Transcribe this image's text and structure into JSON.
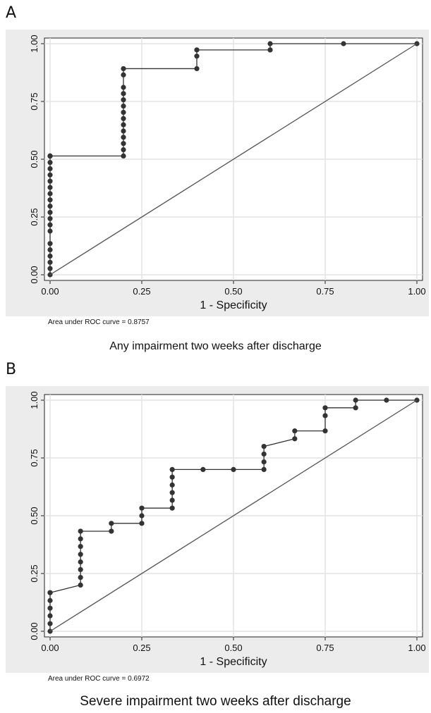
{
  "chart_data": [
    {
      "type": "line",
      "panel_label": "A",
      "caption": "Any impairment two weeks after discharge",
      "xlabel": "1 - Specificity",
      "ylabel": "",
      "xlim": [
        0,
        1
      ],
      "ylim": [
        0,
        1
      ],
      "xticks": [
        "0.00",
        "0.25",
        "0.50",
        "0.75",
        "1.00"
      ],
      "yticks": [
        "0.00",
        "0.25",
        "0.50",
        "0.75",
        "1.00"
      ],
      "grid": true,
      "annotation": "Area under ROC curve = 0.8757",
      "series": [
        {
          "role": "roc",
          "x": [
            0,
            0,
            0,
            0,
            0,
            0,
            0,
            0,
            0,
            0,
            0,
            0,
            0,
            0,
            0,
            0,
            0,
            0,
            0,
            0,
            0,
            0.2,
            0.2,
            0.2,
            0.2,
            0.2,
            0.2,
            0.2,
            0.2,
            0.2,
            0.2,
            0.2,
            0.2,
            0.2,
            0.2,
            0.4,
            0.4,
            0.4,
            0.6,
            0.6,
            0.8,
            1.0
          ],
          "y": [
            0,
            0.027,
            0.054,
            0.081,
            0.108,
            0.135,
            0.189,
            0.216,
            0.243,
            0.27,
            0.297,
            0.324,
            0.351,
            0.378,
            0.405,
            0.432,
            0.459,
            0.486,
            0.514,
            0.514,
            0.514,
            0.514,
            0.541,
            0.568,
            0.595,
            0.622,
            0.649,
            0.676,
            0.703,
            0.73,
            0.757,
            0.784,
            0.811,
            0.865,
            0.892,
            0.892,
            0.946,
            0.973,
            0.973,
            1.0,
            1.0,
            1.0
          ]
        },
        {
          "role": "reference",
          "x": [
            0,
            1
          ],
          "y": [
            0,
            1
          ]
        }
      ]
    },
    {
      "type": "line",
      "panel_label": "B",
      "caption": "Severe impairment two weeks after discharge",
      "xlabel": "1 - Specificity",
      "ylabel": "",
      "xlim": [
        0,
        1
      ],
      "ylim": [
        0,
        1
      ],
      "xticks": [
        "0.00",
        "0.25",
        "0.50",
        "0.75",
        "1.00"
      ],
      "yticks": [
        "0.00",
        "0.25",
        "0.50",
        "0.75",
        "1.00"
      ],
      "grid": true,
      "annotation": "Area under ROC curve = 0.6972",
      "series": [
        {
          "role": "roc",
          "x": [
            0,
            0,
            0,
            0,
            0,
            0,
            0,
            0.083,
            0.083,
            0.083,
            0.083,
            0.083,
            0.083,
            0.083,
            0.083,
            0.167,
            0.167,
            0.25,
            0.25,
            0.25,
            0.333,
            0.333,
            0.333,
            0.333,
            0.333,
            0.333,
            0.417,
            0.5,
            0.583,
            0.583,
            0.583,
            0.583,
            0.667,
            0.667,
            0.75,
            0.75,
            0.75,
            0.833,
            0.833,
            0.917,
            1.0
          ],
          "y": [
            0,
            0.033,
            0.067,
            0.1,
            0.133,
            0.167,
            0.167,
            0.2,
            0.233,
            0.267,
            0.3,
            0.333,
            0.367,
            0.4,
            0.433,
            0.433,
            0.467,
            0.467,
            0.5,
            0.533,
            0.533,
            0.567,
            0.6,
            0.633,
            0.667,
            0.7,
            0.7,
            0.7,
            0.7,
            0.733,
            0.767,
            0.8,
            0.833,
            0.867,
            0.867,
            0.933,
            0.967,
            0.967,
            1.0,
            1.0,
            1.0
          ]
        },
        {
          "role": "reference",
          "x": [
            0,
            1
          ],
          "y": [
            0,
            1
          ]
        }
      ]
    }
  ]
}
